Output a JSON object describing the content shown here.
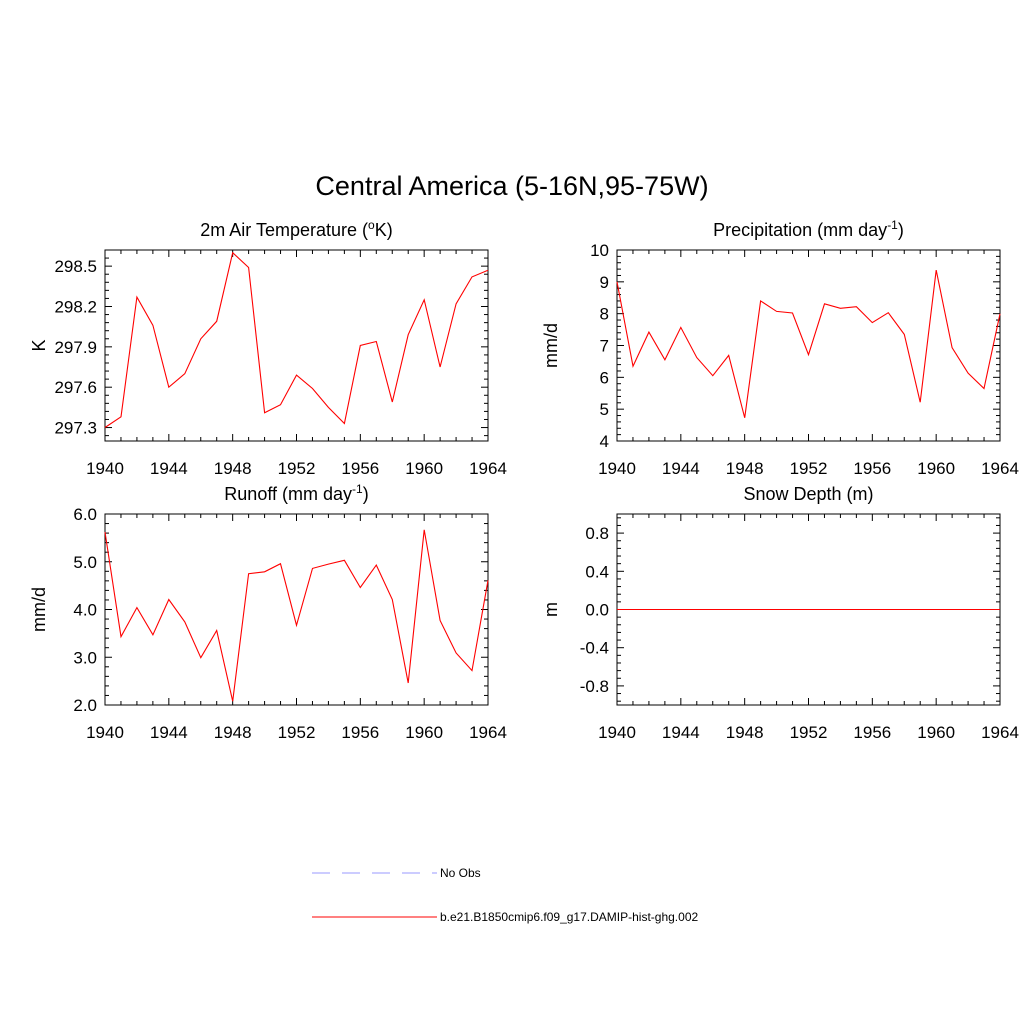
{
  "figure": {
    "title": "Central America (5-16N,95-75W)",
    "series_color": "#ff0000",
    "obs_color": "#9999ff"
  },
  "legend": {
    "entries": [
      {
        "label": "No Obs",
        "style": "dashed",
        "color": "#9999ff"
      },
      {
        "label": "b.e21.B1850cmip6.f09_g17.DAMIP-hist-ghg.002",
        "style": "solid",
        "color": "#ff0000"
      }
    ]
  },
  "chart_data": [
    {
      "type": "line",
      "title": "2m Air Temperature (°K)",
      "title_parts": {
        "pre": "2m Air Temperature (",
        "sup": "o",
        "post": "K)"
      },
      "ylabel": "K",
      "xlim": [
        1940,
        1964
      ],
      "ylim": [
        297.2,
        298.62
      ],
      "xticks": [
        1940,
        1944,
        1948,
        1952,
        1956,
        1960,
        1964
      ],
      "yticks": [
        297.3,
        297.6,
        297.9,
        298.2,
        298.5
      ],
      "ytick_labels": [
        "297.3",
        "297.6",
        "297.9",
        "298.2",
        "298.5"
      ],
      "series": [
        {
          "x": [
            1940,
            1941,
            1942,
            1943,
            1944,
            1945,
            1946,
            1947,
            1948,
            1949,
            1950,
            1951,
            1952,
            1953,
            1954,
            1955,
            1956,
            1957,
            1958,
            1959,
            1960,
            1961,
            1962,
            1963,
            1964
          ],
          "values": [
            297.3,
            297.38,
            298.27,
            298.06,
            297.6,
            297.7,
            297.96,
            298.09,
            298.6,
            298.49,
            297.41,
            297.47,
            297.69,
            297.59,
            297.45,
            297.33,
            297.91,
            297.94,
            297.49,
            297.99,
            298.25,
            297.75,
            298.22,
            298.42,
            298.47
          ]
        }
      ]
    },
    {
      "type": "line",
      "title": "Precipitation (mm day-1)",
      "title_parts": {
        "pre": "Precipitation (mm day",
        "sup": "-1",
        "post": ")"
      },
      "ylabel": "mm/d",
      "xlim": [
        1940,
        1964
      ],
      "ylim": [
        4,
        10
      ],
      "xticks": [
        1940,
        1944,
        1948,
        1952,
        1956,
        1960,
        1964
      ],
      "yticks": [
        4,
        5,
        6,
        7,
        8,
        9,
        10
      ],
      "ytick_labels": [
        "4",
        "5",
        "6",
        "7",
        "8",
        "9",
        "10"
      ],
      "series": [
        {
          "x": [
            1940,
            1941,
            1942,
            1943,
            1944,
            1945,
            1946,
            1947,
            1948,
            1949,
            1950,
            1951,
            1952,
            1953,
            1954,
            1955,
            1956,
            1957,
            1958,
            1959,
            1960,
            1961,
            1962,
            1963,
            1964
          ],
          "values": [
            9.0,
            6.35,
            7.42,
            6.55,
            7.57,
            6.62,
            6.05,
            6.69,
            4.73,
            8.4,
            8.07,
            8.02,
            6.71,
            8.31,
            8.17,
            8.22,
            7.72,
            8.03,
            7.35,
            5.22,
            9.37,
            6.93,
            6.13,
            5.65,
            8.0
          ]
        }
      ]
    },
    {
      "type": "line",
      "title": "Runoff (mm day-1)",
      "title_parts": {
        "pre": "Runoff (mm day",
        "sup": "-1",
        "post": ")"
      },
      "ylabel": "mm/d",
      "xlim": [
        1940,
        1964
      ],
      "ylim": [
        2.0,
        6.0
      ],
      "xticks": [
        1940,
        1944,
        1948,
        1952,
        1956,
        1960,
        1964
      ],
      "yticks": [
        2.0,
        3.0,
        4.0,
        5.0,
        6.0
      ],
      "ytick_labels": [
        "2.0",
        "3.0",
        "4.0",
        "5.0",
        "6.0"
      ],
      "series": [
        {
          "x": [
            1940,
            1941,
            1942,
            1943,
            1944,
            1945,
            1946,
            1947,
            1948,
            1949,
            1950,
            1951,
            1952,
            1953,
            1954,
            1955,
            1956,
            1957,
            1958,
            1959,
            1960,
            1961,
            1962,
            1963,
            1964
          ],
          "values": [
            5.62,
            3.43,
            4.04,
            3.47,
            4.21,
            3.74,
            2.99,
            3.56,
            2.08,
            4.75,
            4.79,
            4.96,
            3.67,
            4.86,
            4.95,
            5.03,
            4.46,
            4.93,
            4.21,
            2.46,
            5.67,
            3.77,
            3.09,
            2.72,
            4.61
          ]
        }
      ]
    },
    {
      "type": "line",
      "title": "Snow Depth (m)",
      "title_parts": {
        "pre": "Snow Depth (m)",
        "sup": "",
        "post": ""
      },
      "ylabel": "m",
      "xlim": [
        1940,
        1964
      ],
      "ylim": [
        -1.0,
        1.0
      ],
      "xticks": [
        1940,
        1944,
        1948,
        1952,
        1956,
        1960,
        1964
      ],
      "yticks": [
        -0.8,
        -0.4,
        0.0,
        0.4,
        0.8
      ],
      "ytick_labels": [
        "-0.8",
        "-0.4",
        "0.0",
        "0.4",
        "0.8"
      ],
      "series": [
        {
          "x": [
            1940,
            1964
          ],
          "values": [
            0.0,
            0.0
          ]
        }
      ]
    }
  ]
}
